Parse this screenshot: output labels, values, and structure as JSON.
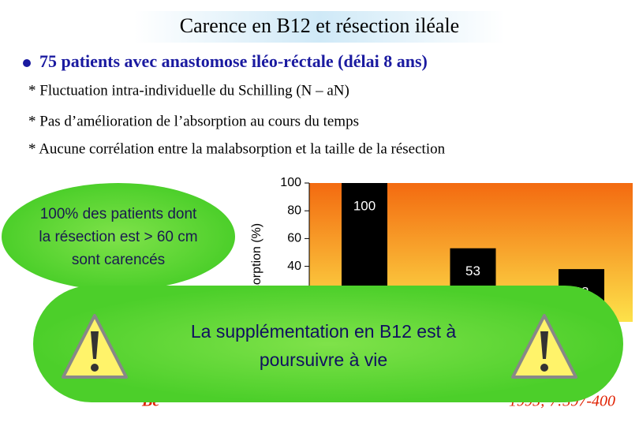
{
  "title": "Carence en B12 et résection iléale",
  "bullet": "75 patients avec anastomose iléo-réctale (délai 8 ans)",
  "subpoints": [
    "* Fluctuation intra-individuelle du Schilling (N – aN)",
    "* Pas d’amélioration de l’absorption au cours du temps",
    "* Aucune corrélation entre la malabsorption et la taille de la résection"
  ],
  "callout": [
    "100% des patients dont",
    "la résection est > 60 cm",
    "sont carencés"
  ],
  "banner": [
    "La supplémentation en B12 est à",
    "poursuivre à vie"
  ],
  "citation": [
    "Be",
    "1995; 7:397-400"
  ],
  "chart_data": {
    "type": "bar",
    "y_label": "sorption (%)",
    "categories": [
      null,
      null,
      null
    ],
    "values": [
      100,
      53,
      38
    ],
    "color": "#000000",
    "ylim": [
      0,
      100
    ],
    "yticks": [
      40,
      60,
      80,
      100
    ]
  }
}
